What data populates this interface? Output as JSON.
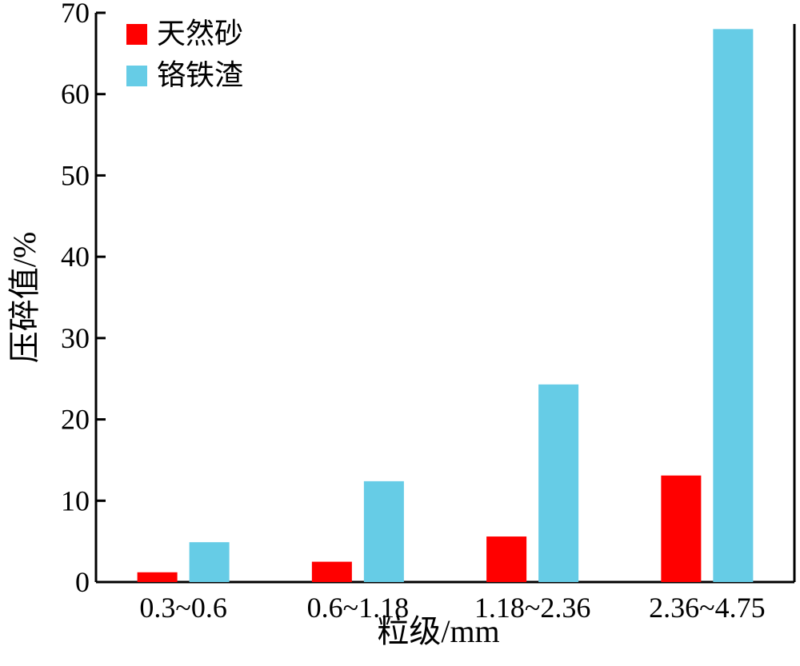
{
  "chart_data": {
    "type": "bar",
    "title": "",
    "xlabel": "粒级/mm",
    "ylabel": "压碎值/%",
    "categories": [
      "0.3~0.6",
      "0.6~1.18",
      "1.18~2.36",
      "2.36~4.75"
    ],
    "series": [
      {
        "name": "天然砂",
        "color": "#ff0000",
        "values": [
          1.2,
          2.5,
          5.6,
          13.1
        ]
      },
      {
        "name": "铬铁渣",
        "color": "#66cce6",
        "values": [
          4.9,
          12.4,
          24.3,
          68.0
        ]
      }
    ],
    "ylim": [
      0,
      70
    ],
    "yticks": [
      "0",
      "10",
      "20",
      "30",
      "40",
      "50",
      "60",
      "70"
    ],
    "grid": false,
    "legend_position": "top-left"
  }
}
